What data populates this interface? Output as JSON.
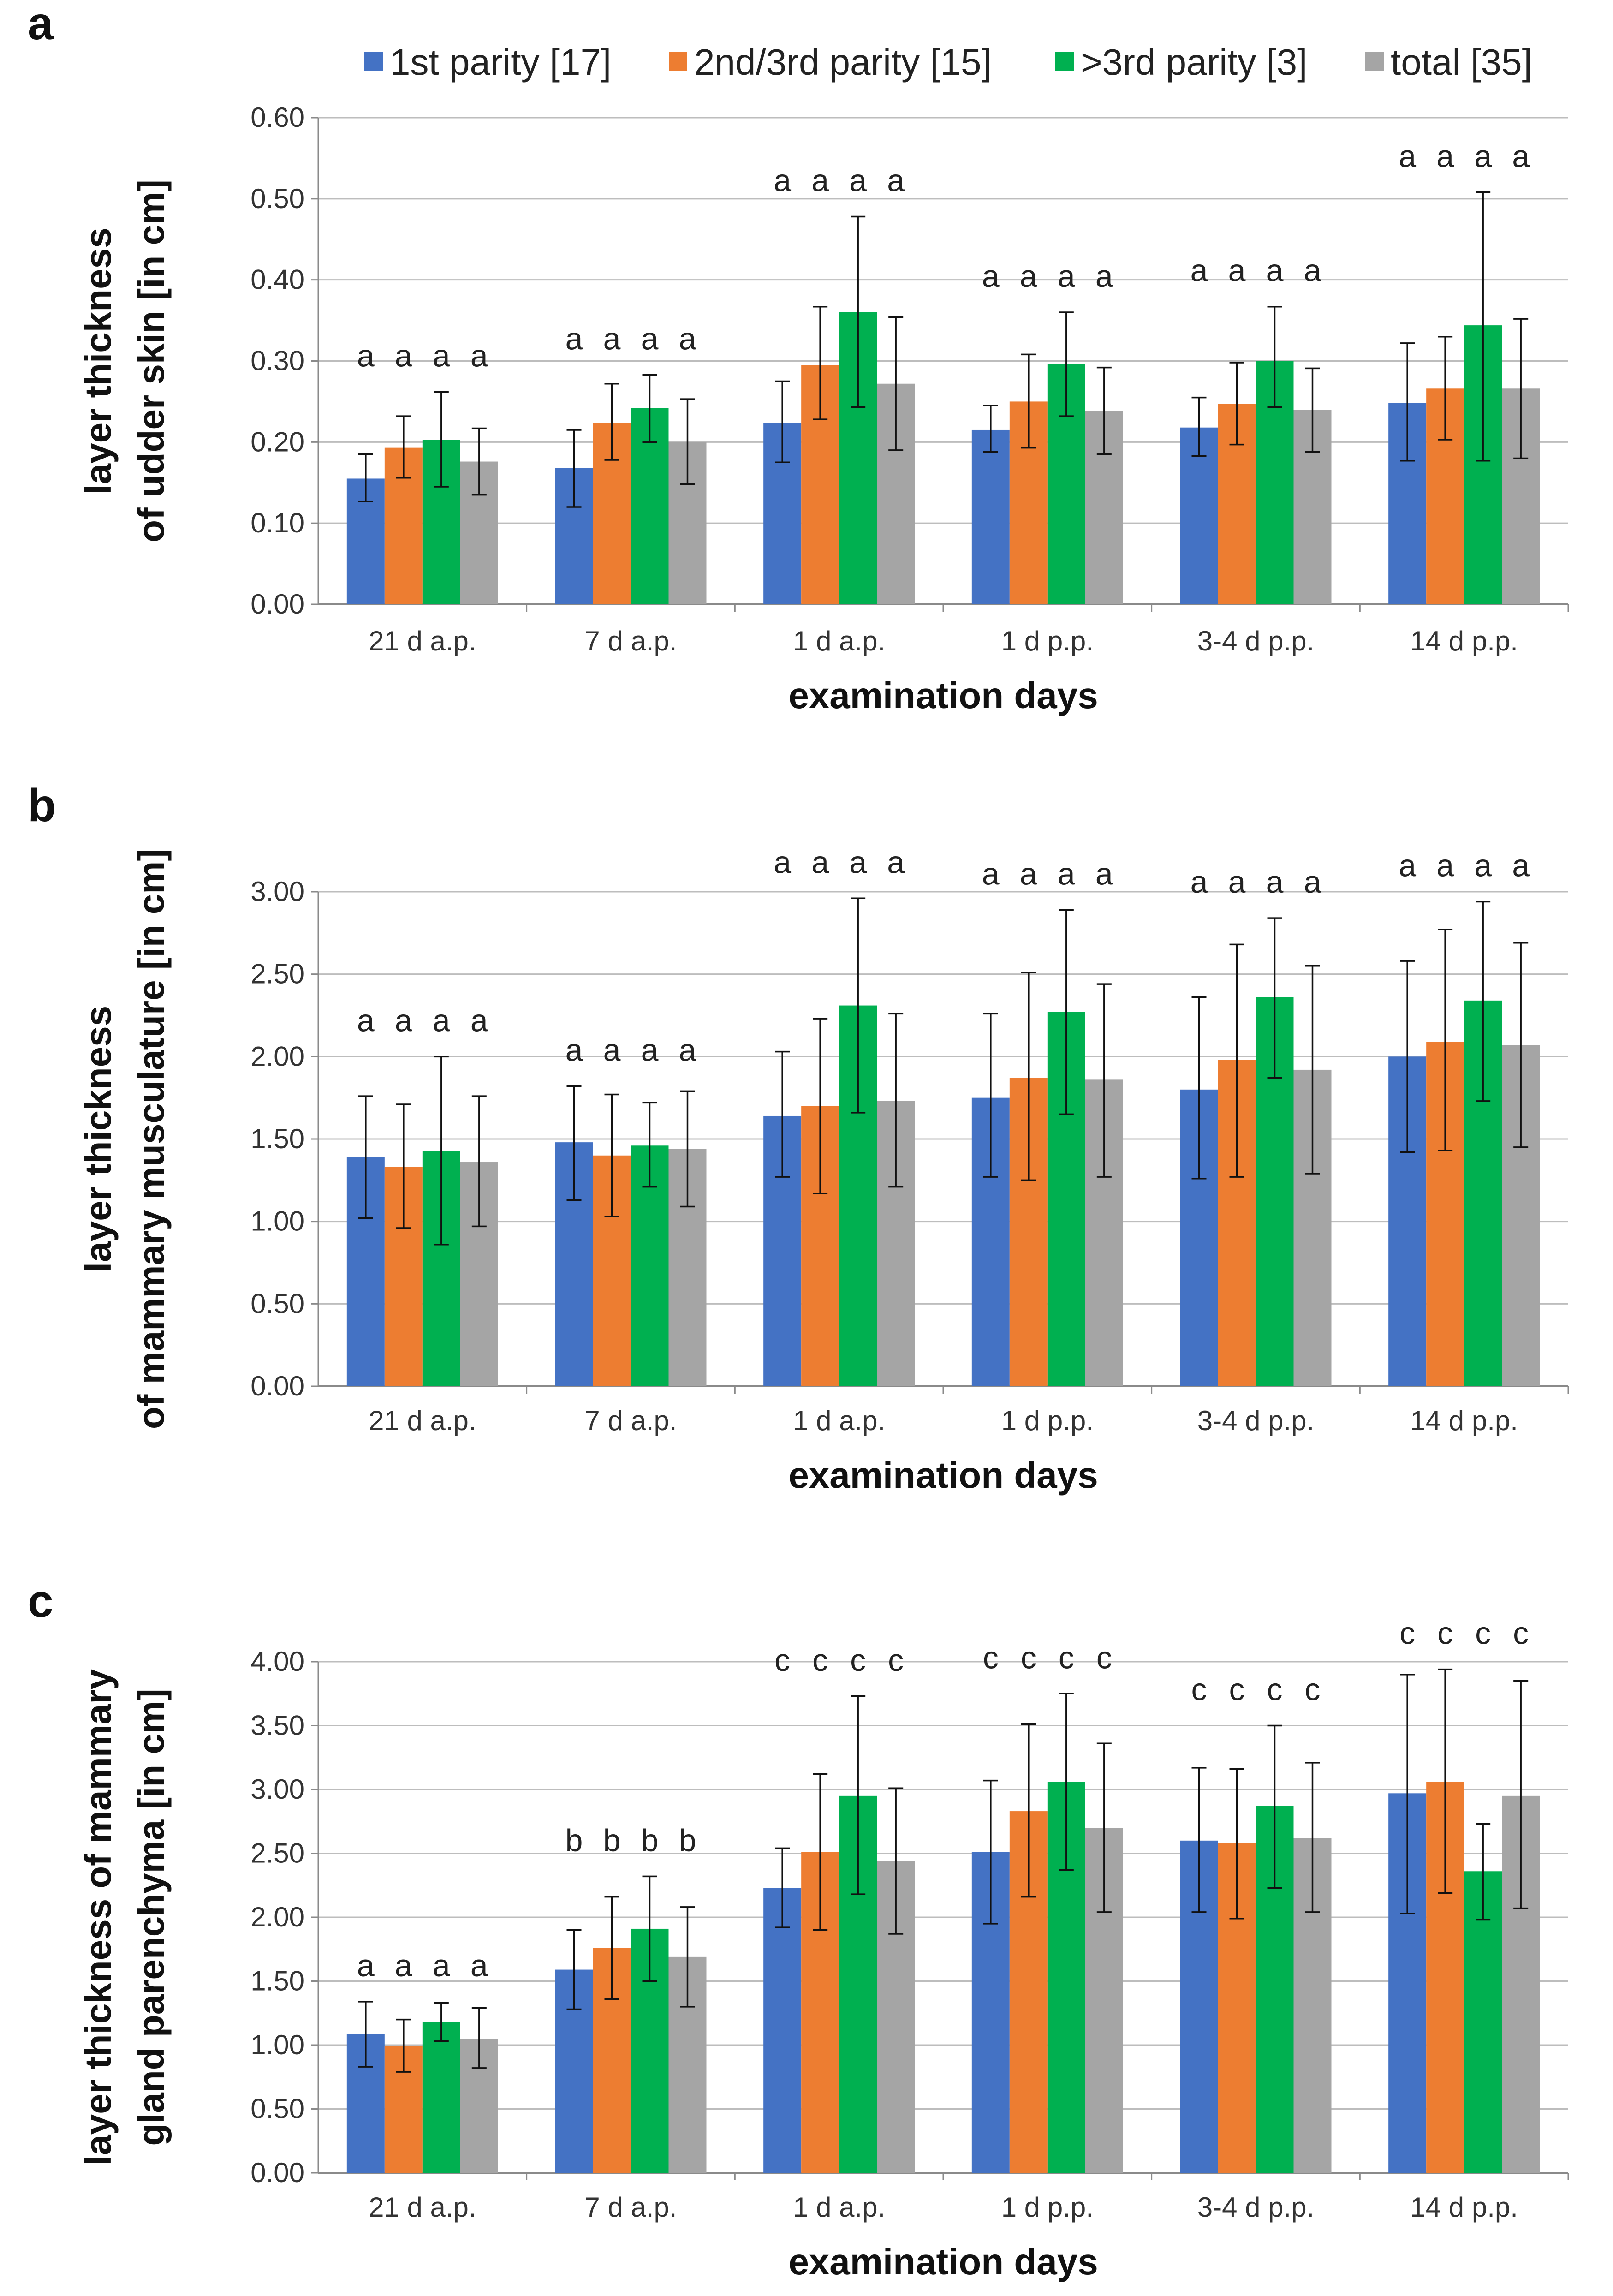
{
  "legend": [
    {
      "label": "1st parity [17]",
      "color": "#4472C4"
    },
    {
      "label": "2nd/3rd parity [15]",
      "color": "#ED7D31"
    },
    {
      "label": ">3rd parity [3]",
      "color": "#00B050"
    },
    {
      "label": "total [35]",
      "color": "#A5A5A5"
    }
  ],
  "chart_data": [
    {
      "panel": "a",
      "type": "bar",
      "categories": [
        "21 d a.p.",
        "7 d a.p.",
        "1 d a.p.",
        "1 d p.p.",
        "3-4 d p.p.",
        "14 d p.p."
      ],
      "series": [
        {
          "name": "1st parity [17]",
          "values": [
            0.155,
            0.168,
            0.223,
            0.215,
            0.218,
            0.248
          ],
          "err_hi": [
            0.185,
            0.215,
            0.275,
            0.245,
            0.255,
            0.322
          ],
          "err_lo": [
            0.127,
            0.12,
            0.175,
            0.188,
            0.183,
            0.177
          ]
        },
        {
          "name": "2nd/3rd parity [15]",
          "values": [
            0.193,
            0.223,
            0.295,
            0.25,
            0.247,
            0.266
          ],
          "err_hi": [
            0.232,
            0.272,
            0.367,
            0.308,
            0.298,
            0.33
          ],
          "err_lo": [
            0.156,
            0.178,
            0.228,
            0.193,
            0.197,
            0.203
          ]
        },
        {
          "name": ">3rd parity [3]",
          "values": [
            0.203,
            0.242,
            0.36,
            0.296,
            0.3,
            0.344
          ],
          "err_hi": [
            0.262,
            0.283,
            0.478,
            0.36,
            0.367,
            0.508
          ],
          "err_lo": [
            0.145,
            0.2,
            0.243,
            0.232,
            0.243,
            0.177
          ]
        },
        {
          "name": "total [35]",
          "values": [
            0.176,
            0.2,
            0.272,
            0.238,
            0.24,
            0.266
          ],
          "err_hi": [
            0.217,
            0.253,
            0.354,
            0.292,
            0.291,
            0.352
          ],
          "err_lo": [
            0.135,
            0.148,
            0.19,
            0.185,
            0.188,
            0.18
          ]
        }
      ],
      "sig_letters": [
        "a a a a",
        "a a a a",
        "a a a a",
        "a a a a",
        "a a a a",
        "a a a a"
      ],
      "title": "",
      "xlabel": "examination days",
      "ylabel_lines": [
        "layer thickness",
        "of udder skin [in cm]"
      ],
      "ylim": [
        0,
        0.6
      ],
      "yticks": [
        "0.00",
        "0.10",
        "0.20",
        "0.30",
        "0.40",
        "0.50",
        "0.60"
      ]
    },
    {
      "panel": "b",
      "type": "bar",
      "categories": [
        "21 d a.p.",
        "7 d a.p.",
        "1 d a.p.",
        "1 d p.p.",
        "3-4 d p.p.",
        "14 d p.p."
      ],
      "series": [
        {
          "name": "1st parity [17]",
          "values": [
            1.39,
            1.48,
            1.64,
            1.75,
            1.8,
            2.0
          ],
          "err_hi": [
            1.76,
            1.82,
            2.03,
            2.26,
            2.36,
            2.58
          ],
          "err_lo": [
            1.02,
            1.13,
            1.27,
            1.27,
            1.26,
            1.42
          ]
        },
        {
          "name": "2nd/3rd parity [15]",
          "values": [
            1.33,
            1.4,
            1.7,
            1.87,
            1.98,
            2.09
          ],
          "err_hi": [
            1.71,
            1.77,
            2.23,
            2.51,
            2.68,
            2.77
          ],
          "err_lo": [
            0.96,
            1.03,
            1.17,
            1.25,
            1.27,
            1.43
          ]
        },
        {
          "name": ">3rd parity [3]",
          "values": [
            1.43,
            1.46,
            2.31,
            2.27,
            2.36,
            2.34
          ],
          "err_hi": [
            2.0,
            1.72,
            2.96,
            2.89,
            2.84,
            2.94
          ],
          "err_lo": [
            0.86,
            1.21,
            1.66,
            1.65,
            1.87,
            1.73
          ]
        },
        {
          "name": "total [35]",
          "values": [
            1.36,
            1.44,
            1.73,
            1.86,
            1.92,
            2.07
          ],
          "err_hi": [
            1.76,
            1.79,
            2.26,
            2.44,
            2.55,
            2.69
          ],
          "err_lo": [
            0.97,
            1.09,
            1.21,
            1.27,
            1.29,
            1.45
          ]
        }
      ],
      "sig_letters": [
        "a a a a",
        "a a a a",
        "a a a a",
        "a a a a",
        "a a a a",
        "a a a a"
      ],
      "title": "",
      "xlabel": "examination days",
      "ylabel_lines": [
        "layer thickness",
        "of mammary musculature [in cm]"
      ],
      "ylim": [
        0,
        3
      ],
      "yticks": [
        "0.00",
        "0.50",
        "1.00",
        "1.50",
        "2.00",
        "2.50",
        "3.00"
      ]
    },
    {
      "panel": "c",
      "type": "bar",
      "categories": [
        "21 d a.p.",
        "7 d a.p.",
        "1 d a.p.",
        "1 d p.p.",
        "3-4 d p.p.",
        "14 d p.p."
      ],
      "series": [
        {
          "name": "1st parity [17]",
          "values": [
            1.09,
            1.59,
            2.23,
            2.51,
            2.6,
            2.97
          ],
          "err_hi": [
            1.34,
            1.9,
            2.54,
            3.07,
            3.17,
            3.9
          ],
          "err_lo": [
            0.83,
            1.28,
            1.92,
            1.95,
            2.04,
            2.03
          ]
        },
        {
          "name": "2nd/3rd parity [15]",
          "values": [
            0.99,
            1.76,
            2.51,
            2.83,
            2.58,
            3.06
          ],
          "err_hi": [
            1.2,
            2.16,
            3.12,
            3.51,
            3.16,
            3.94
          ],
          "err_lo": [
            0.79,
            1.36,
            1.9,
            2.16,
            1.99,
            2.19
          ]
        },
        {
          "name": ">3rd parity [3]",
          "values": [
            1.18,
            1.91,
            2.95,
            3.06,
            2.87,
            2.36
          ],
          "err_hi": [
            1.33,
            2.32,
            3.73,
            3.75,
            3.5,
            2.73
          ],
          "err_lo": [
            1.03,
            1.5,
            2.18,
            2.37,
            2.23,
            1.98
          ]
        },
        {
          "name": "total [35]",
          "values": [
            1.05,
            1.69,
            2.44,
            2.7,
            2.62,
            2.95
          ],
          "err_hi": [
            1.29,
            2.08,
            3.01,
            3.36,
            3.21,
            3.85
          ],
          "err_lo": [
            0.82,
            1.3,
            1.87,
            2.04,
            2.04,
            2.07
          ]
        }
      ],
      "sig_letters": [
        "a a a a",
        "b b b b",
        "c c c c",
        "c c c c",
        "c c c c",
        "c c c c"
      ],
      "title": "",
      "xlabel": "examination days",
      "ylabel_lines": [
        "layer thickness of mammary",
        "gland parenchyma [in cm]"
      ],
      "ylim": [
        0,
        4
      ],
      "yticks": [
        "0.00",
        "0.50",
        "1.00",
        "1.50",
        "2.00",
        "2.50",
        "3.00",
        "3.50",
        "4.00"
      ]
    }
  ]
}
